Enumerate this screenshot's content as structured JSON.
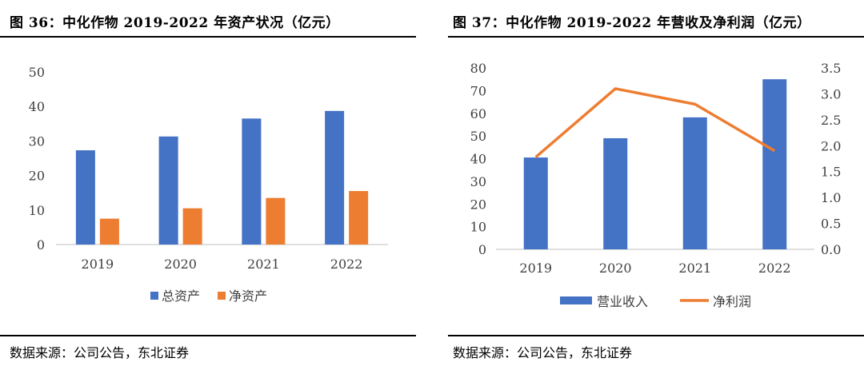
{
  "colors": {
    "blue": "#4472C4",
    "orange": "#ED7D31",
    "axis": "#BFBFBF",
    "text": "#404040"
  },
  "left": {
    "title": "图 36：中化作物 2019-2022 年资产状况（亿元）",
    "source": "数据来源：公司公告，东北证券",
    "chart_data": {
      "type": "bar",
      "categories": [
        "2019",
        "2020",
        "2021",
        "2022"
      ],
      "series": [
        {
          "name": "总资产",
          "values": [
            27.3,
            31.3,
            36.5,
            38.7
          ],
          "color": "#4472C4"
        },
        {
          "name": "净资产",
          "values": [
            7.5,
            10.5,
            13.5,
            15.5
          ],
          "color": "#ED7D31"
        }
      ],
      "ylim": [
        0,
        50
      ],
      "yticks": [
        "0",
        "10",
        "20",
        "30",
        "40",
        "50"
      ],
      "legend": "bottom",
      "grid": false
    }
  },
  "right": {
    "title": "图 37：中化作物 2019-2022 年营收及净利润（亿元）",
    "source": "数据来源：公司公告，东北证券",
    "chart_data": {
      "type": "bar",
      "categories": [
        "2019",
        "2020",
        "2021",
        "2022"
      ],
      "series": [
        {
          "name": "营业收入",
          "type": "bar",
          "axis": "left",
          "values": [
            40.5,
            49.0,
            58.2,
            75.0
          ],
          "color": "#4472C4"
        },
        {
          "name": "净利润",
          "type": "line",
          "axis": "right",
          "values": [
            1.78,
            3.1,
            2.8,
            1.9
          ],
          "color": "#ED7D31"
        }
      ],
      "ylim": [
        0,
        80
      ],
      "yticks": [
        "0",
        "10",
        "20",
        "30",
        "40",
        "50",
        "60",
        "70",
        "80"
      ],
      "y2lim": [
        0,
        3.5
      ],
      "y2ticks": [
        "0.0",
        "0.5",
        "1.0",
        "1.5",
        "2.0",
        "2.5",
        "3.0",
        "3.5"
      ],
      "legend": "bottom",
      "grid": false
    }
  }
}
